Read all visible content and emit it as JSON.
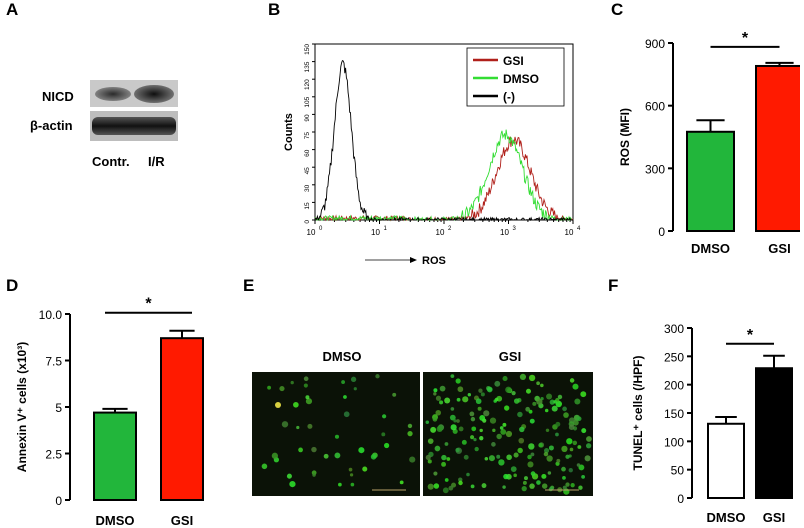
{
  "panels": {
    "A": "A",
    "B": "B",
    "C": "C",
    "D": "D",
    "E": "E",
    "F": "F"
  },
  "panelA": {
    "rows": [
      "NICD",
      "β-actin"
    ],
    "lanes": [
      "Contr.",
      "I/R"
    ]
  },
  "panelE": {
    "labels": [
      "DMSO",
      "GSI"
    ]
  },
  "colors": {
    "green": "#22b63b",
    "red": "#ff1a00",
    "black": "#000000",
    "white": "#ffffff",
    "histGSI": "#b0201a",
    "histDMSO": "#33dd33",
    "histNeg": "#000000"
  },
  "chart_data": [
    {
      "id": "B",
      "type": "line",
      "xlabel": "ROS",
      "ylabel": "Counts",
      "x_scale": "log",
      "xlim": [
        1,
        10000
      ],
      "ylim": [
        0,
        150
      ],
      "x_ticks": [
        "10",
        "10",
        "10",
        "10",
        "10"
      ],
      "x_tick_exps": [
        "0",
        "1",
        "2",
        "3",
        "4"
      ],
      "y_ticks": [
        "0",
        "15",
        "30",
        "45",
        "60",
        "75",
        "90",
        "105",
        "120",
        "135",
        "150"
      ],
      "legend": "top-right",
      "series": [
        {
          "name": "GSI",
          "color": "#b0201a",
          "peak_x": 1200,
          "peak_y": 68
        },
        {
          "name": "DMSO",
          "color": "#33dd33",
          "peak_x": 900,
          "peak_y": 72
        },
        {
          "name": "(-)",
          "color": "#000000",
          "peak_x": 2.7,
          "peak_y": 133
        }
      ]
    },
    {
      "id": "C",
      "type": "bar",
      "ylabel": "ROS (MFI)",
      "categories": [
        "DMSO",
        "GSI"
      ],
      "values": [
        475,
        790
      ],
      "errors": [
        55,
        15
      ],
      "ylim": [
        0,
        900
      ],
      "y_ticks": [
        "0",
        "300",
        "600",
        "900"
      ],
      "colors": [
        "#22b63b",
        "#ff1a00"
      ],
      "significance": "*"
    },
    {
      "id": "D",
      "type": "bar",
      "ylabel": "Annexin V⁺ cells (x10³)",
      "categories": [
        "DMSO",
        "GSI"
      ],
      "values": [
        4.7,
        8.7
      ],
      "errors": [
        0.2,
        0.4
      ],
      "ylim": [
        0,
        10
      ],
      "y_ticks": [
        "0",
        "2.5",
        "5",
        "7.5",
        "10.0"
      ],
      "colors": [
        "#22b63b",
        "#ff1a00"
      ],
      "significance": "*"
    },
    {
      "id": "F",
      "type": "bar",
      "ylabel": "TUNEL⁺ cells (/HPF)",
      "categories": [
        "DMSO",
        "GSI"
      ],
      "values": [
        131,
        229
      ],
      "errors": [
        12,
        22
      ],
      "ylim": [
        0,
        300
      ],
      "y_ticks": [
        "0",
        "50",
        "100",
        "150",
        "200",
        "250",
        "300"
      ],
      "colors": [
        "#ffffff",
        "#000000"
      ],
      "significance": "*"
    }
  ]
}
